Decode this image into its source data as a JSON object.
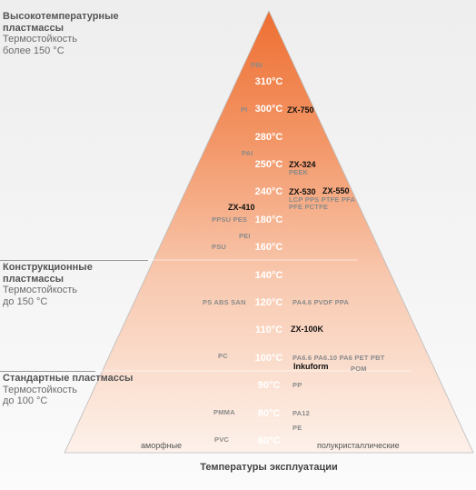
{
  "categories": [
    {
      "title": "Высокотемпературные пластмассы",
      "line1": "Термостойкость",
      "line2": "более 150 °С"
    },
    {
      "title": "Конструкционные пластмассы",
      "line1": "Термостойкость",
      "line2": "до 150 °С"
    },
    {
      "title": "Стандартные пластмассы",
      "line1": "Термостойкость",
      "line2": "до 100 °С"
    }
  ],
  "temperatures": [
    "310°C",
    "300°C",
    "280°C",
    "250°C",
    "240°C",
    "180°C",
    "160°C",
    "140°C",
    "120°C",
    "110°C",
    "100°C",
    "90°C",
    "80°C",
    "60°C"
  ],
  "materials": {
    "pbi": "PBI",
    "pi": "PI",
    "pai": "PAI",
    "peek": "PEEK",
    "ppsu_pes": "PPSU  PES",
    "pei": "PEI",
    "psu": "PSU",
    "lcp_pps": "LCP  PPS  PTFE  PFA",
    "pfe_pctfe": "PFE  PCTFE",
    "ps_abs_san": "PS   ABS   SAN",
    "pa46_pvdf": "PA4.6   PVDF   PPA",
    "pc": "PC",
    "pa66": "PA6.6     PA6.10    PA6    PET   PBT",
    "pom": "POM",
    "pp": "PP",
    "pmma": "PMMA",
    "pa12": "PA12",
    "pe": "PE",
    "pvc": "PVC"
  },
  "products": {
    "zx750": "ZX-750",
    "zx324": "ZX-324",
    "zx530": "ZX-530",
    "zx550": "ZX-550",
    "zx410": "ZX-410",
    "zx100k": "ZX-100K",
    "inkuform": "Inkuform"
  },
  "footer": {
    "left": "аморфные",
    "right": "полукристаллические",
    "axis_title": "Температуры эксплуатации"
  },
  "colors": {
    "apex": "#ee6f32",
    "base": "#fdf1ea",
    "temp_text": "#ffffff",
    "material_text": "#8a8a8a",
    "product_text": "#111111"
  }
}
